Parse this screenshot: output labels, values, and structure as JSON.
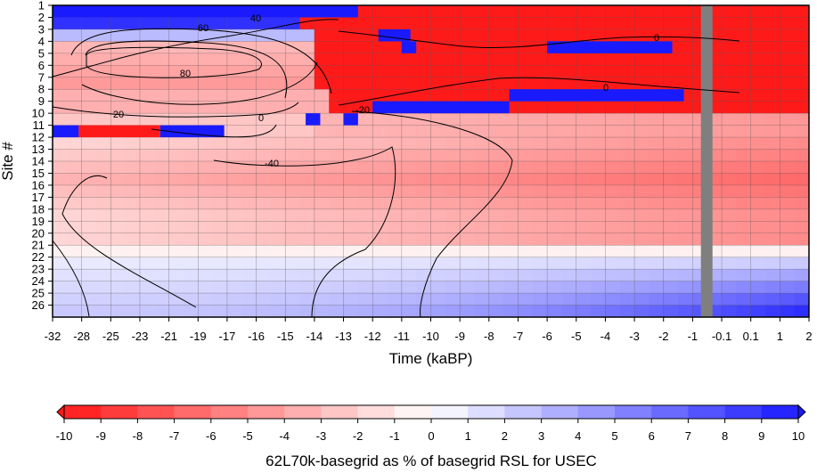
{
  "chart_data": {
    "type": "heatmap",
    "x_ticks": [
      "-32",
      "-28",
      "-25",
      "-23",
      "-21",
      "-19",
      "-17",
      "-16",
      "-15",
      "-14",
      "-13",
      "-12",
      "-11",
      "-10",
      "-9",
      "-8",
      "-7",
      "-6",
      "-5",
      "-4",
      "-3",
      "-2",
      "-1",
      "-0.1",
      "0.1",
      "1",
      "2"
    ],
    "y_ticks": [
      "1",
      "2",
      "3",
      "4",
      "5",
      "6",
      "7",
      "8",
      "9",
      "10",
      "11",
      "12",
      "13",
      "14",
      "15",
      "16",
      "17",
      "18",
      "19",
      "20",
      "21",
      "22",
      "23",
      "24",
      "25",
      "26"
    ],
    "xlabel": "Time (kaBP)",
    "ylabel": "Site #",
    "colorbar": {
      "label": "62L70k-basegrid as % of basegrid RSL for USEC",
      "ticks": [
        "-10",
        "-9",
        "-8",
        "-7",
        "-6",
        "-5",
        "-4",
        "-3",
        "-2",
        "-1",
        "0",
        "1",
        "2",
        "3",
        "4",
        "5",
        "6",
        "7",
        "8",
        "9",
        "10"
      ],
      "range": [
        -10,
        10
      ],
      "neg_color": "#ff1a1a",
      "pos_color": "#1a1aff",
      "mid_color": "#ffffff"
    },
    "contour_labels": [
      "40",
      "60",
      "80",
      "20",
      "0",
      "-20",
      "-40",
      "0",
      "0"
    ],
    "masked_column_color": "#7f7f7f",
    "note_values": "Values are percent differences (clipped to ±10). Rows 1-11: strong red (~-10) in latter time half, blue (~+10) near top rows early. Rows 12-20: light red (~-2 to -5). Rows 21-26: light blue increasing to ~+8 toward present."
  }
}
